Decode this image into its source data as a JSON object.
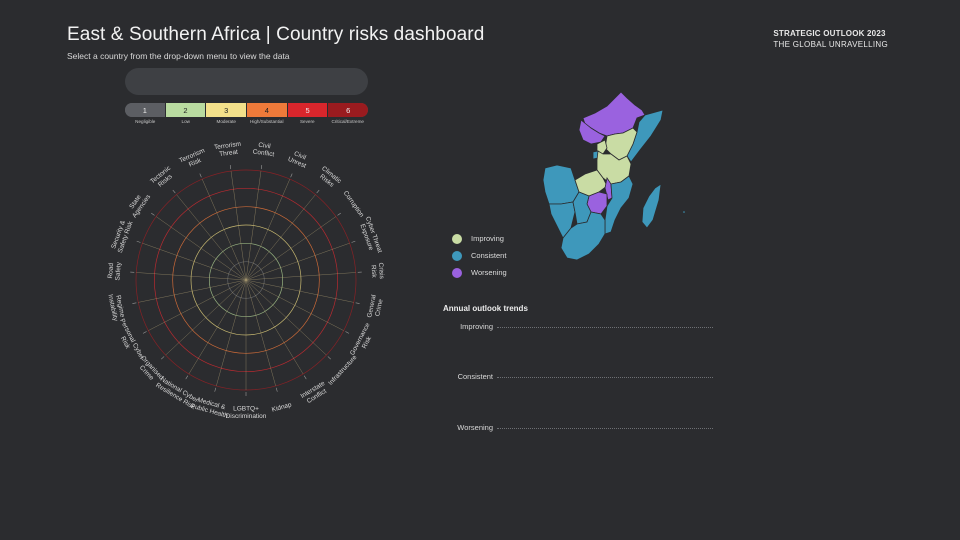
{
  "header": {
    "title": "East & Southern Africa | Country risks dashboard",
    "subtitle": "Select a country from the drop-down menu to view the data",
    "brand_line1": "STRATEGIC OUTLOOK 2023",
    "brand_line2": "THE GLOBAL UNRAVELLING"
  },
  "dropdown": {
    "value": ""
  },
  "risk_scale": [
    {
      "num": "1",
      "label": "Negligible",
      "color": "#5c5e63"
    },
    {
      "num": "2",
      "label": "Low",
      "color": "#b9dba0"
    },
    {
      "num": "3",
      "label": "Moderate",
      "color": "#f3e08a"
    },
    {
      "num": "4",
      "label": "High/Substantial",
      "color": "#ee7a3a"
    },
    {
      "num": "5",
      "label": "Severe",
      "color": "#d9262c"
    },
    {
      "num": "6",
      "label": "Critical/Extreme",
      "color": "#9a1b1f"
    }
  ],
  "radar": {
    "categories": [
      "Civil Conflict",
      "Civil Unrest",
      "Climatic Risks",
      "Corruption",
      "Cyber Threat Exposure",
      "Crisis Risk",
      "General Crime",
      "Governance Risk",
      "Infrastructure",
      "Interstate Conflict",
      "Kidnap",
      "LGBTQ+ Discrimination",
      "Medical & Public Health",
      "National Cyber Resilience Risk",
      "Organised Crime",
      "Personal Cyber Risk",
      "Regime Instability",
      "Road Safety",
      "Security & Safety Risk",
      "State Agencies",
      "Tectonic Risks",
      "Terrorism Risk",
      "Terrorism Threat"
    ],
    "ring_colors": [
      "#6a6c70",
      "#a9c98e",
      "#e4d27c",
      "#e6743a",
      "#d02a30",
      "#962024"
    ]
  },
  "map_legend": [
    {
      "label": "Improving",
      "color": "#c9dca4"
    },
    {
      "label": "Consistent",
      "color": "#3e98bb"
    },
    {
      "label": "Worsening",
      "color": "#9a62df"
    }
  ],
  "trends": {
    "title": "Annual outlook trends",
    "rows": [
      "Improving",
      "Consistent",
      "Worsening"
    ]
  }
}
